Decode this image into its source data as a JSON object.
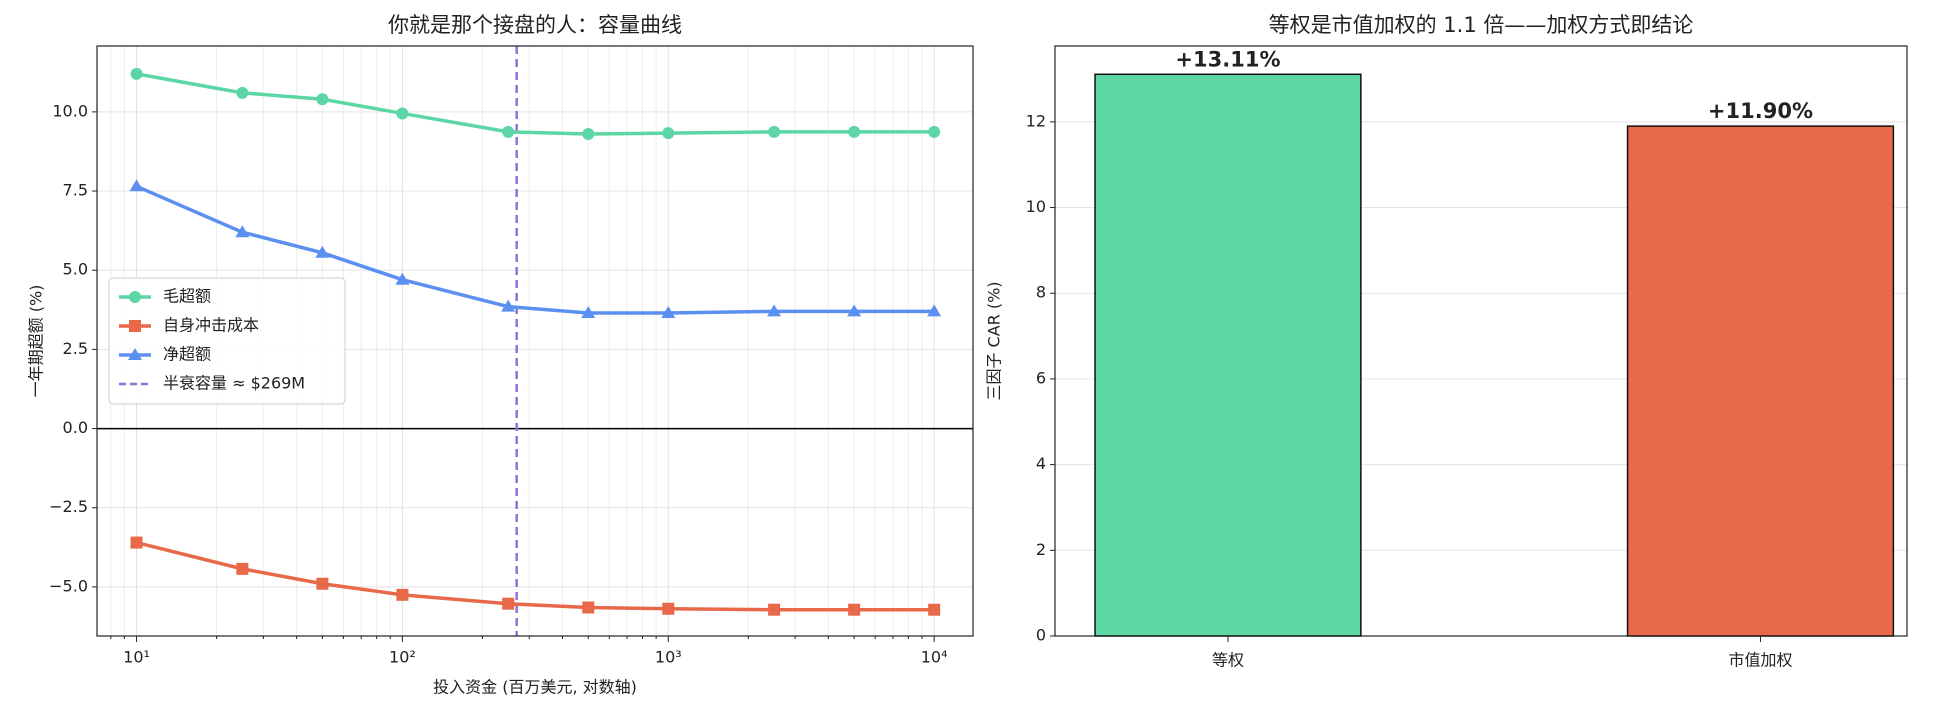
{
  "chart_data": [
    {
      "type": "line",
      "title": "你就是那个接盘的人：容量曲线",
      "x_label": "投入资金 (百万美元, 对数轴)",
      "y_label": "一年期超额 (%)",
      "x": [
        10,
        25,
        50,
        100,
        250,
        500,
        1000,
        2500,
        5000,
        10000
      ],
      "series": [
        {
          "name": "毛超额",
          "color": "#5cd6a4",
          "marker": "circle",
          "values": [
            11.2,
            10.6,
            10.4,
            9.95,
            9.37,
            9.3,
            9.33,
            9.37,
            9.37,
            9.37
          ]
        },
        {
          "name": "自身冲击成本",
          "color": "#e8694a",
          "marker": "square",
          "values": [
            -3.6,
            -4.43,
            -4.9,
            -5.25,
            -5.53,
            -5.65,
            -5.69,
            -5.72,
            -5.72,
            -5.72
          ]
        },
        {
          "name": "净超额",
          "color": "#5b8ff0",
          "marker": "triangle",
          "values": [
            7.65,
            6.2,
            5.55,
            4.7,
            3.85,
            3.65,
            3.65,
            3.7,
            3.7,
            3.7
          ]
        }
      ],
      "vline": {
        "value": 269,
        "label": "半衰容量 ≈ $269M",
        "color": "#9370db"
      },
      "axhline": 0,
      "xscale": "log",
      "xlim": [
        7.1,
        14000
      ],
      "xticks": [
        {
          "value": 10,
          "label": "10¹"
        },
        {
          "value": 100,
          "label": "10²"
        },
        {
          "value": 1000,
          "label": "10³"
        },
        {
          "value": 10000,
          "label": "10⁴"
        }
      ],
      "xticks_minor": [
        8,
        9,
        20,
        30,
        40,
        50,
        60,
        70,
        80,
        90,
        200,
        300,
        400,
        500,
        600,
        700,
        800,
        900,
        2000,
        3000,
        4000,
        5000,
        6000,
        7000,
        8000,
        9000
      ],
      "ylim": [
        -6.55,
        12.08
      ],
      "yticks": [
        {
          "value": -5,
          "label": "−5.0"
        },
        {
          "value": -2.5,
          "label": "−2.5"
        },
        {
          "value": 0,
          "label": "0.0"
        },
        {
          "value": 2.5,
          "label": "2.5"
        },
        {
          "value": 5,
          "label": "5.0"
        },
        {
          "value": 7.5,
          "label": "7.5"
        },
        {
          "value": 10,
          "label": "10.0"
        }
      ],
      "grid": true,
      "legend": "center left"
    },
    {
      "type": "bar",
      "title": "等权是市值加权的 1.1 倍——加权方式即结论",
      "y_label": "三因子 CAR (%)",
      "categories": [
        "等权",
        "市值加权"
      ],
      "values": [
        13.11,
        11.9
      ],
      "value_labels": [
        "+13.11%",
        "+11.90%"
      ],
      "colors": [
        "#5cd6a4",
        "#e8694a"
      ],
      "ylim": [
        0,
        13.77
      ],
      "yticks": [
        0,
        2,
        4,
        6,
        8,
        10,
        12
      ],
      "grid": true
    }
  ]
}
